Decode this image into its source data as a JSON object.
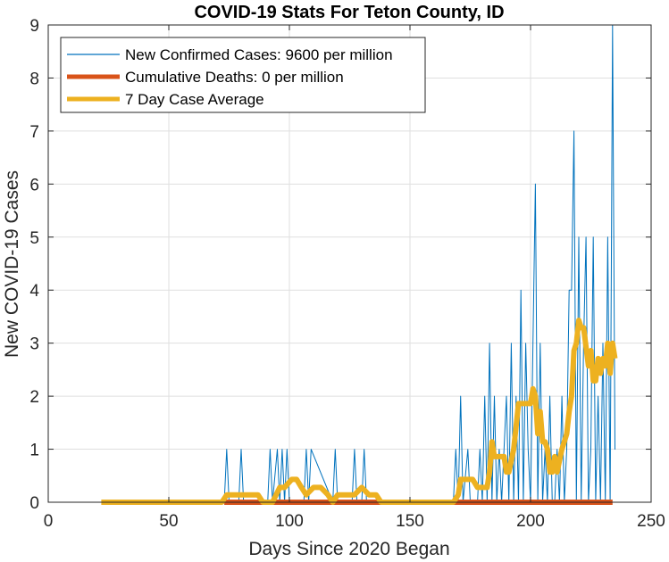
{
  "chart_data": {
    "type": "line",
    "title": "COVID-19 Stats For Teton County, ID",
    "xlabel": "Days Since 2020 Began",
    "ylabel": "New COVID-19 Cases",
    "xlim": [
      0,
      250
    ],
    "ylim": [
      0,
      9
    ],
    "xticks": [
      0,
      50,
      100,
      150,
      200,
      250
    ],
    "yticks": [
      0,
      1,
      2,
      3,
      4,
      5,
      6,
      7,
      8,
      9
    ],
    "grid": true,
    "legend_position": "top-left",
    "series": [
      {
        "name": "New Confirmed Cases: 9600 per million",
        "color": "#0072BD",
        "style": "thin",
        "x": [
          22,
          73,
          74,
          75,
          79,
          80,
          81,
          91,
          92,
          93,
          95,
          96,
          97,
          98,
          99,
          100,
          101,
          106,
          107,
          108,
          109,
          118,
          119,
          120,
          126,
          127,
          128,
          130,
          131,
          132,
          168,
          169,
          170,
          171,
          172,
          174,
          175,
          178,
          179,
          180,
          181,
          182,
          183,
          184,
          185,
          186,
          187,
          188,
          189,
          190,
          191,
          192,
          193,
          194,
          195,
          196,
          197,
          198,
          199,
          200,
          201,
          202,
          203,
          204,
          205,
          206,
          207,
          208,
          209,
          210,
          211,
          212,
          213,
          214,
          215,
          216,
          217,
          218,
          219,
          220,
          221,
          222,
          223,
          224,
          225,
          226,
          227,
          228,
          229,
          230,
          231,
          232,
          233,
          234,
          235
        ],
        "y": [
          0,
          0,
          1,
          0,
          0,
          1,
          0,
          0,
          1,
          0,
          1,
          0,
          1,
          0,
          1,
          0,
          0,
          0,
          1,
          0,
          1,
          0,
          1,
          0,
          0,
          1,
          0,
          0,
          1,
          0,
          0,
          1,
          0,
          2,
          0,
          1,
          0,
          0,
          1,
          0,
          2,
          0,
          3,
          0,
          2,
          0,
          1,
          0,
          1,
          2,
          0,
          3,
          0,
          2,
          0,
          4,
          0,
          3,
          1,
          0,
          3,
          6,
          0,
          3,
          0,
          1,
          0,
          2,
          0,
          0,
          1,
          0,
          2,
          0,
          1,
          4,
          4,
          7,
          0,
          5,
          0,
          3,
          5,
          0,
          1,
          5,
          0,
          2,
          0,
          3,
          0,
          5,
          0,
          9,
          1
        ]
      },
      {
        "name": "Cumulative Deaths: 0 per million",
        "color": "#D95319",
        "style": "thick",
        "x": [
          73,
          234
        ],
        "y": [
          0,
          0
        ]
      },
      {
        "name": "7 Day Case Average",
        "color": "#EDB120",
        "style": "thick",
        "x": [
          22,
          72,
          74,
          80,
          82,
          87,
          89,
          93,
          96,
          98,
          101,
          103,
          105,
          107,
          110,
          113,
          116,
          118,
          120,
          125,
          127,
          130,
          133,
          136,
          138,
          168,
          170,
          171,
          176,
          178,
          182,
          183,
          184,
          185,
          189,
          190,
          191,
          193,
          194,
          195,
          197,
          200,
          201,
          202,
          203,
          204,
          205,
          206,
          207,
          208,
          209,
          210,
          211,
          213,
          214,
          215,
          216,
          217,
          218,
          219,
          220,
          221,
          222,
          224,
          225,
          226,
          227,
          228,
          229,
          230,
          231,
          232,
          233,
          234,
          235
        ],
        "y": [
          0,
          0,
          0.14,
          0.14,
          0.14,
          0.14,
          0.0,
          0.0,
          0.28,
          0.28,
          0.43,
          0.43,
          0.28,
          0.14,
          0.28,
          0.28,
          0.14,
          0.0,
          0.14,
          0.14,
          0.14,
          0.28,
          0.14,
          0.14,
          0.0,
          0.0,
          0.14,
          0.43,
          0.43,
          0.28,
          0.28,
          0.57,
          1.14,
          0.86,
          0.86,
          0.57,
          0.57,
          1.0,
          1.43,
          1.86,
          1.86,
          1.86,
          2.14,
          2.0,
          1.29,
          1.71,
          1.14,
          1.14,
          1.0,
          0.57,
          0.57,
          0.86,
          0.57,
          1.0,
          1.14,
          1.29,
          1.71,
          2.0,
          2.86,
          3.0,
          3.43,
          3.29,
          3.29,
          2.57,
          2.86,
          2.29,
          2.29,
          2.71,
          2.43,
          2.71,
          2.57,
          3.0,
          2.43,
          3.0,
          2.71
        ]
      }
    ]
  }
}
